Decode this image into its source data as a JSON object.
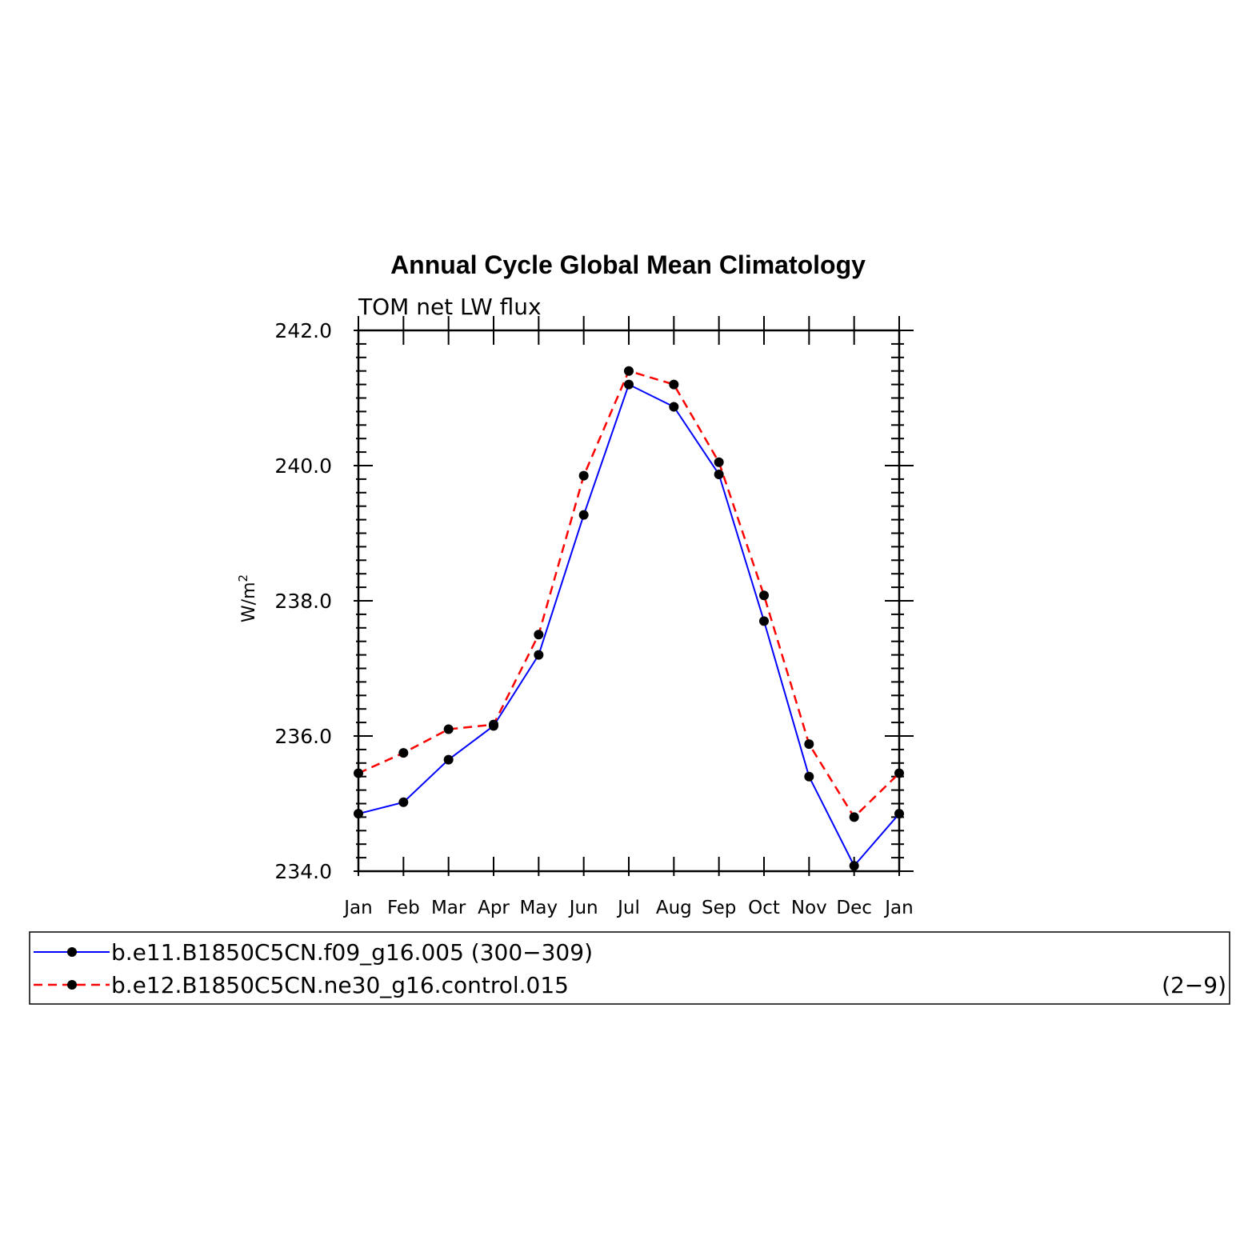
{
  "chart_data": {
    "type": "line",
    "title": "Annual Cycle Global Mean Climatology",
    "subtitle": "TOM net LW flux",
    "ylabel": "W/m",
    "ylabel_superscript": "2",
    "categories": [
      "Jan",
      "Feb",
      "Mar",
      "Apr",
      "May",
      "Jun",
      "Jul",
      "Aug",
      "Sep",
      "Oct",
      "Nov",
      "Dec",
      "Jan"
    ],
    "ylim": [
      234.0,
      242.0
    ],
    "yticks": [
      "234.0",
      "236.0",
      "238.0",
      "240.0",
      "242.0"
    ],
    "grid": false,
    "legend_position": "bottom",
    "series": [
      {
        "name": "b.e11.B1850C5CN.f09_g16.005 (300−309)",
        "color": "#0000ff",
        "line_style": "solid",
        "values": [
          234.85,
          235.02,
          235.65,
          236.15,
          237.2,
          239.27,
          241.2,
          240.87,
          239.87,
          237.7,
          235.4,
          234.08,
          234.85
        ]
      },
      {
        "name": "b.e12.B1850C5CN.ne30_g16.control.015",
        "name_suffix": "(2−9)",
        "color": "#ff0000",
        "line_style": "dashed",
        "values": [
          235.45,
          235.75,
          236.1,
          236.17,
          237.5,
          239.85,
          241.4,
          241.2,
          240.05,
          238.08,
          235.88,
          234.8,
          235.45
        ]
      }
    ]
  }
}
